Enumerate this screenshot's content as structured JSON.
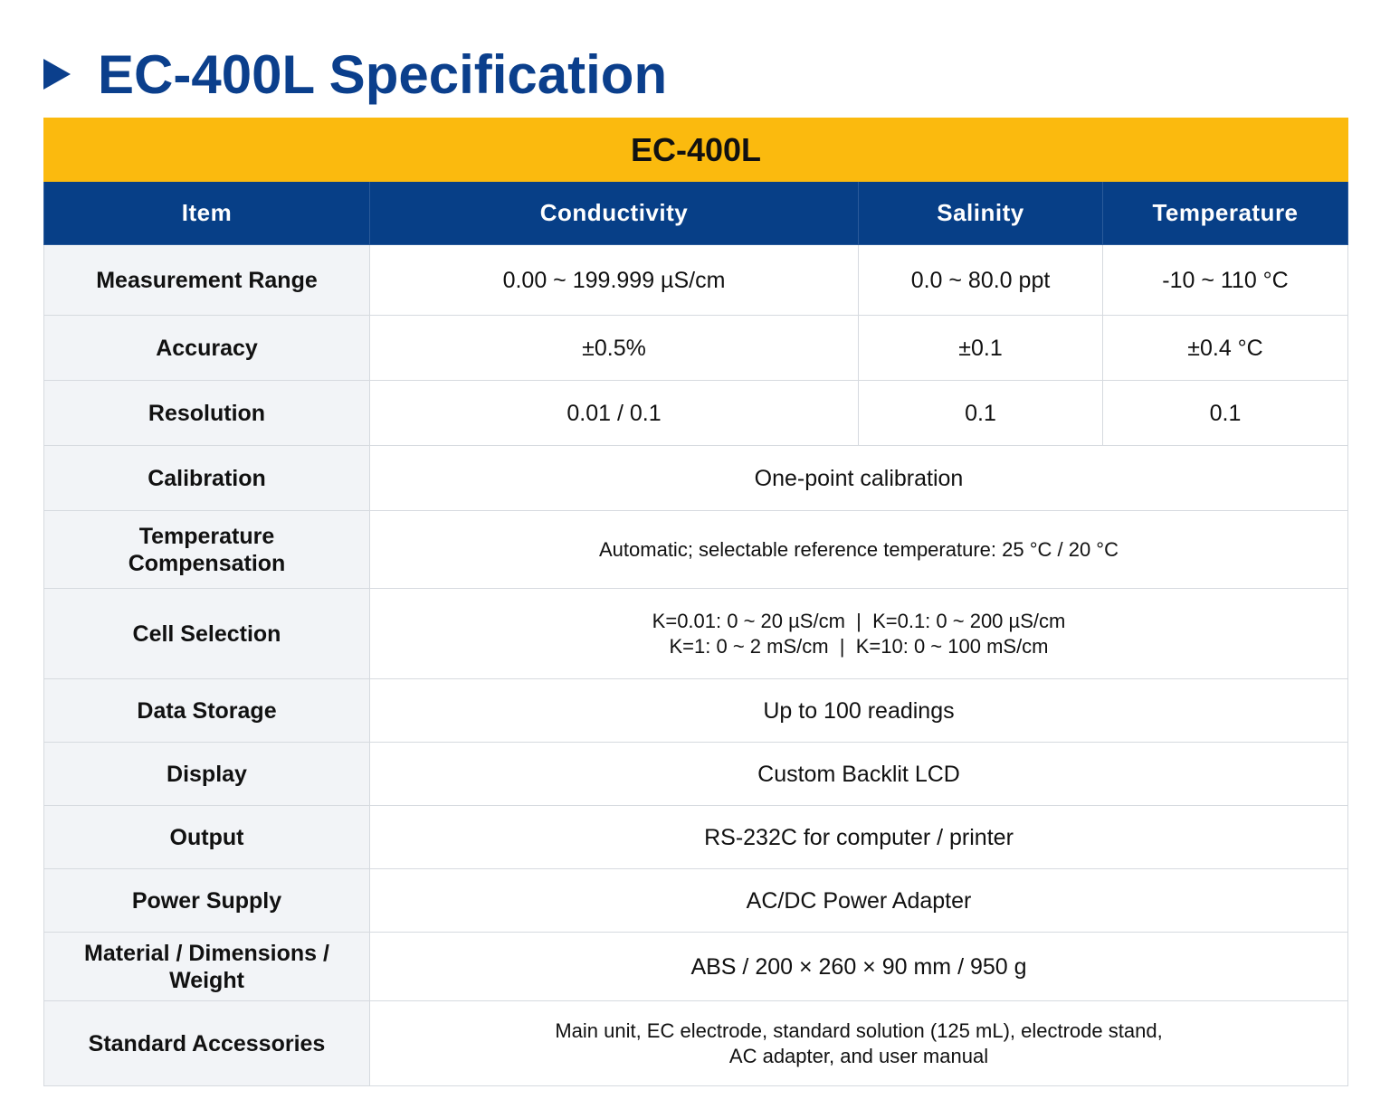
{
  "header": {
    "title": "EC-400L Specification"
  },
  "table": {
    "model": "EC-400L",
    "columns": [
      "Item",
      "Conductivity",
      "Salinity",
      "Temperature"
    ],
    "rows": [
      {
        "label": [
          "Measurement Range"
        ],
        "values": [
          [
            "0.00 ~ 199.999 µS/cm"
          ],
          [
            "0.0 ~ 80.0 ppt"
          ],
          [
            "-10 ~ 110 °C"
          ]
        ]
      },
      {
        "label": [
          "Accuracy"
        ],
        "values": [
          [
            "±0.5%"
          ],
          [
            "±0.1"
          ],
          [
            "±0.4 °C"
          ]
        ]
      },
      {
        "label": [
          "Resolution"
        ],
        "values": [
          [
            "0.01 / 0.1"
          ],
          [
            "0.1"
          ],
          [
            "0.1"
          ]
        ]
      },
      {
        "label": [
          "Calibration"
        ],
        "values": [
          [
            "One-point calibration"
          ]
        ]
      },
      {
        "label": [
          "Temperature",
          "Compensation"
        ],
        "values": [
          [
            "Automatic; selectable reference temperature: 25 °C / 20 °C"
          ]
        ]
      },
      {
        "label": [
          "Cell Selection"
        ],
        "values": [
          [
            "K=0.01: 0 ~ 20 µS/cm  |  K=0.1: 0 ~ 200 µS/cm",
            "K=1: 0 ~ 2 mS/cm  |  K=10: 0 ~ 100 mS/cm"
          ]
        ]
      },
      {
        "label": [
          "Data Storage"
        ],
        "values": [
          [
            "Up to 100 readings"
          ]
        ]
      },
      {
        "label": [
          "Display"
        ],
        "values": [
          [
            "Custom Backlit LCD"
          ]
        ]
      },
      {
        "label": [
          "Output"
        ],
        "values": [
          [
            "RS-232C for computer / printer"
          ]
        ]
      },
      {
        "label": [
          "Power Supply"
        ],
        "values": [
          [
            "AC/DC Power Adapter"
          ]
        ]
      },
      {
        "label": [
          "Material / Dimensions /",
          "Weight"
        ],
        "values": [
          [
            "ABS / 200 × 260 × 90 mm / 950 g"
          ]
        ]
      },
      {
        "label": [
          "Standard Accessories"
        ],
        "values": [
          [
            "Main unit, EC electrode, standard solution (125 mL), electrode stand,",
            "AC adapter, and user manual"
          ]
        ]
      }
    ]
  }
}
